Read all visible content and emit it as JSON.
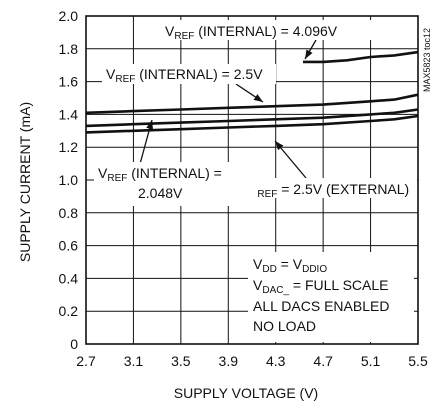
{
  "chart_data": {
    "type": "line",
    "xlabel": "SUPPLY VOLTAGE (V)",
    "ylabel": "SUPPLY CURRENT (mA)",
    "xlim": [
      2.7,
      5.5
    ],
    "ylim": [
      0,
      2.0
    ],
    "x_ticks": [
      "2.7",
      "3.1",
      "3.5",
      "3.9",
      "4.3",
      "4.7",
      "5.1",
      "5.5"
    ],
    "y_ticks": [
      "0",
      "0.2",
      "0.4",
      "0.6",
      "0.8",
      "1.0",
      "1.2",
      "1.4",
      "1.6",
      "1.8",
      "2.0"
    ],
    "grid": true,
    "series": [
      {
        "x": [
          4.53,
          4.7,
          4.9,
          5.1,
          5.3,
          5.5
        ],
        "values": [
          1.72,
          1.72,
          1.73,
          1.75,
          1.76,
          1.78
        ]
      },
      {
        "x": [
          2.7,
          3.1,
          3.5,
          3.9,
          4.3,
          4.7,
          5.1,
          5.3,
          5.5
        ],
        "values": [
          1.41,
          1.42,
          1.43,
          1.44,
          1.45,
          1.46,
          1.48,
          1.49,
          1.52
        ]
      },
      {
        "x": [
          2.7,
          3.1,
          3.5,
          3.9,
          4.3,
          4.7,
          5.1,
          5.3,
          5.5
        ],
        "values": [
          1.33,
          1.34,
          1.35,
          1.36,
          1.37,
          1.38,
          1.4,
          1.41,
          1.43
        ]
      },
      {
        "x": [
          2.7,
          3.1,
          3.5,
          3.9,
          4.3,
          4.7,
          5.1,
          5.3,
          5.5
        ],
        "values": [
          1.29,
          1.3,
          1.31,
          1.32,
          1.33,
          1.34,
          1.36,
          1.37,
          1.39
        ]
      }
    ],
    "annotations": {
      "vref_4096": {
        "v": "V",
        "sub": "REF",
        "rest": " (INTERNAL) = 4.096V"
      },
      "vref_25_int": {
        "v": "V",
        "sub": "REF",
        "rest": " (INTERNAL) = 2.5V"
      },
      "vref_25_ext": {
        "v": "V",
        "sub": "REF",
        "rest": " = 2.5V (EXTERNAL)"
      },
      "vref_2048": {
        "v": "V",
        "sub": "REF",
        "rest": " (INTERNAL) =",
        "line2": "2.048V"
      },
      "conditions": {
        "l1": {
          "a": "V",
          "a_sub": "DD",
          "b": " = V",
          "b_sub": "DDIO"
        },
        "l2": {
          "a": "V",
          "a_sub": "DAC_",
          "rest": " = FULL SCALE"
        },
        "l3": "ALL DACS ENABLED",
        "l4": "NO LOAD"
      }
    },
    "side_label": "MAX5823 toc12"
  }
}
